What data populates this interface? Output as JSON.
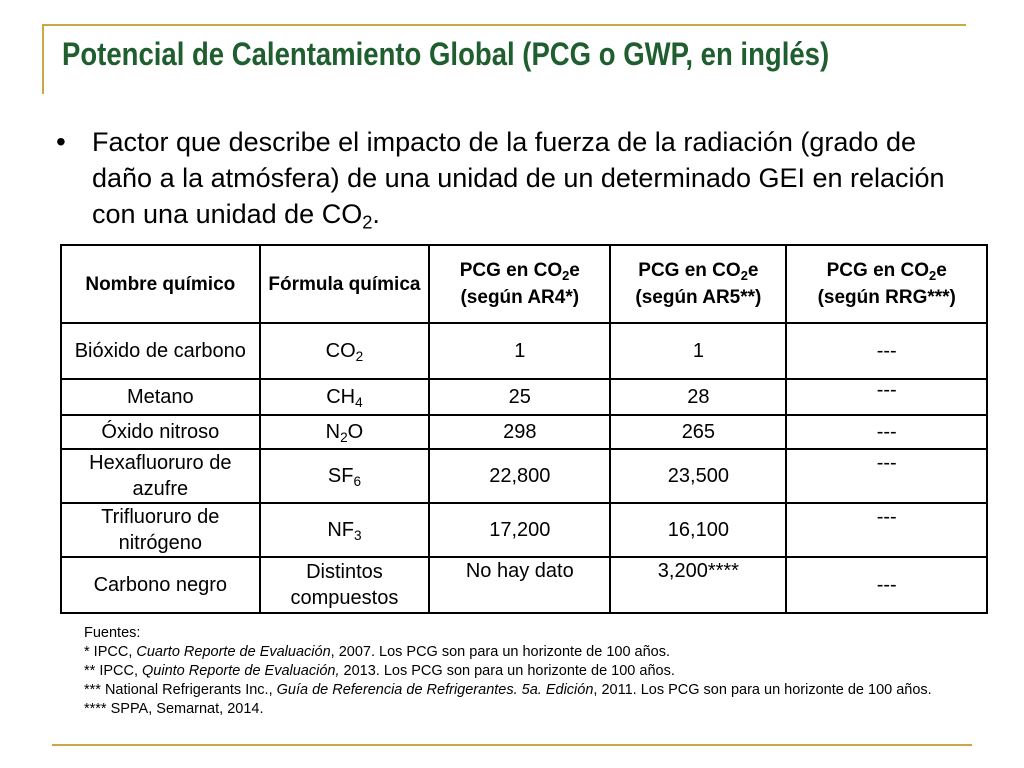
{
  "title": "Potencial de Calentamiento Global (PCG o GWP, en inglés)",
  "bullet": {
    "mark": "•",
    "text": "Factor que describe el impacto de la fuerza de la radiación (grado de daño a la atmósfera) de una unidad de un determinado GEI en relación con una unidad de CO",
    "sub": "2",
    "end": "."
  },
  "table": {
    "headers": {
      "name": "Nombre químico",
      "formula": "Fórmula química",
      "pcg": "PCG en CO",
      "pcg_sub": "2",
      "pcg_e": "e",
      "ar4": "(según AR4*)",
      "ar5": "(según AR5**)",
      "rrg": "(según RRG***)"
    },
    "rows": [
      {
        "name": "Bióxido de carbono",
        "formula": "CO",
        "sub": "2",
        "ar4": "1",
        "ar5": "1",
        "rrg": "---"
      },
      {
        "name": "Metano",
        "formula": "CH",
        "sub": "4",
        "ar4": "25",
        "ar5": "28",
        "rrg": "---"
      },
      {
        "name": "Óxido nitroso",
        "formula": "N",
        "sub": "2",
        "formula_tail": "O",
        "ar4": "298",
        "ar5": "265",
        "rrg": "---"
      },
      {
        "name": "Hexafluoruro de azufre",
        "formula": "SF",
        "sub": "6",
        "ar4": "22,800",
        "ar5": "23,500",
        "rrg": "---"
      },
      {
        "name": "Trifluoruro de nitrógeno",
        "formula": "NF",
        "sub": "3",
        "ar4": "17,200",
        "ar5": "16,100",
        "rrg": "---"
      },
      {
        "name": "Carbono negro",
        "formula": "Distintos compuestos",
        "ar4": "No hay dato",
        "ar5": "3,200****",
        "rrg": "---"
      }
    ]
  },
  "notes": {
    "heading": "Fuentes:",
    "n1_pre": "* IPCC, ",
    "n1_em": "Cuarto Reporte de Evaluación",
    "n1_post": ", 2007. Los PCG son para un horizonte de 100 años.",
    "n2_pre": "** IPCC, ",
    "n2_em": "Quinto Reporte de Evaluación,",
    "n2_post": " 2013. Los PCG son para un horizonte de 100 años.",
    "n3_pre": "*** National Refrigerants Inc., ",
    "n3_em": "Guía de Referencia de Refrigerantes. 5a. Edición",
    "n3_post": ", 2011. Los PCG son para un horizonte de 100 años.",
    "n4": "**** SPPA, Semarnat, 2014."
  }
}
